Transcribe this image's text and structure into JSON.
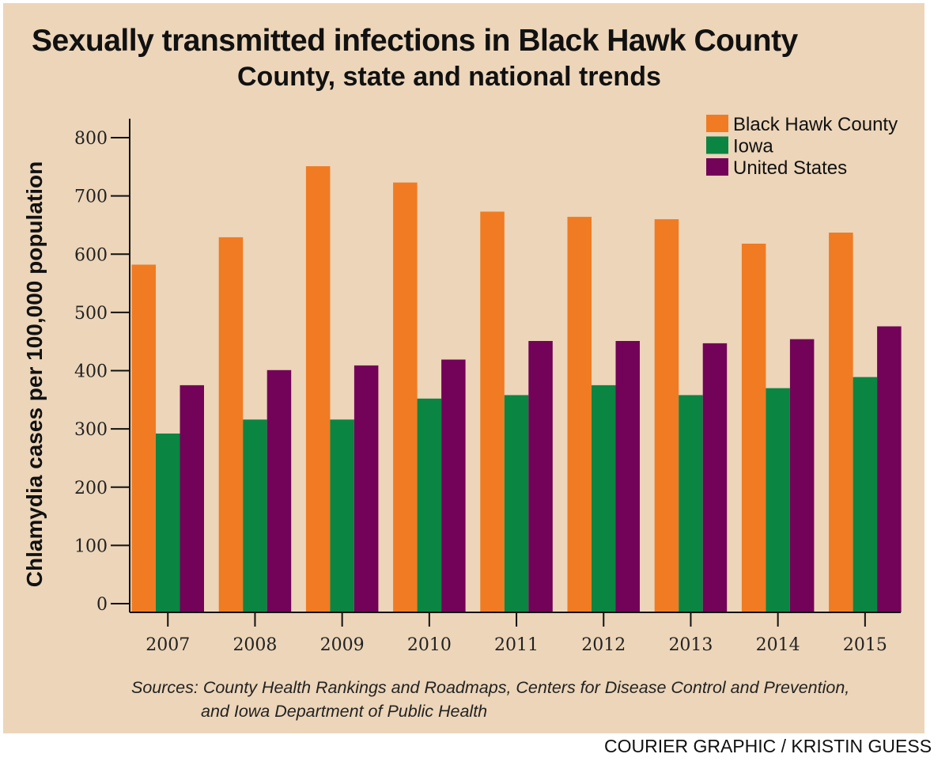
{
  "header": {
    "title": "Sexually transmitted infections in Black Hawk County",
    "subtitle": "County, state and national trends"
  },
  "footer": {
    "sources_line1": "Sources: County Health Rankings and Roadmaps, Centers for Disease Control and Prevention,",
    "sources_line2": "and Iowa Department of Public Health",
    "credit": "COURIER GRAPHIC / KRISTIN GUESS"
  },
  "colors": {
    "background": "#ecd5b9",
    "black_hawk_county": "#f07b22",
    "iowa": "#0b8542",
    "united_states": "#720358"
  },
  "chart_data": {
    "type": "bar",
    "title": "Sexually transmitted infections in Black Hawk County",
    "subtitle": "County, state and national trends",
    "xlabel": "",
    "ylabel": "Chlamydia cases per 100,000 population",
    "ylim": [
      0,
      800
    ],
    "yticks": [
      0,
      100,
      200,
      300,
      400,
      500,
      600,
      700,
      800
    ],
    "grid": false,
    "legend_position": "top-right",
    "categories": [
      "2007",
      "2008",
      "2009",
      "2010",
      "2011",
      "2012",
      "2013",
      "2014",
      "2015"
    ],
    "series": [
      {
        "name": "Black Hawk County",
        "color": "#f07b22",
        "values": [
          582,
          629,
          751,
          723,
          673,
          664,
          660,
          618,
          637
        ]
      },
      {
        "name": "Iowa",
        "color": "#0b8542",
        "values": [
          292,
          316,
          316,
          352,
          358,
          375,
          358,
          370,
          389
        ]
      },
      {
        "name": "United States",
        "color": "#720358",
        "values": [
          375,
          401,
          409,
          419,
          451,
          451,
          447,
          454,
          476
        ]
      }
    ]
  }
}
